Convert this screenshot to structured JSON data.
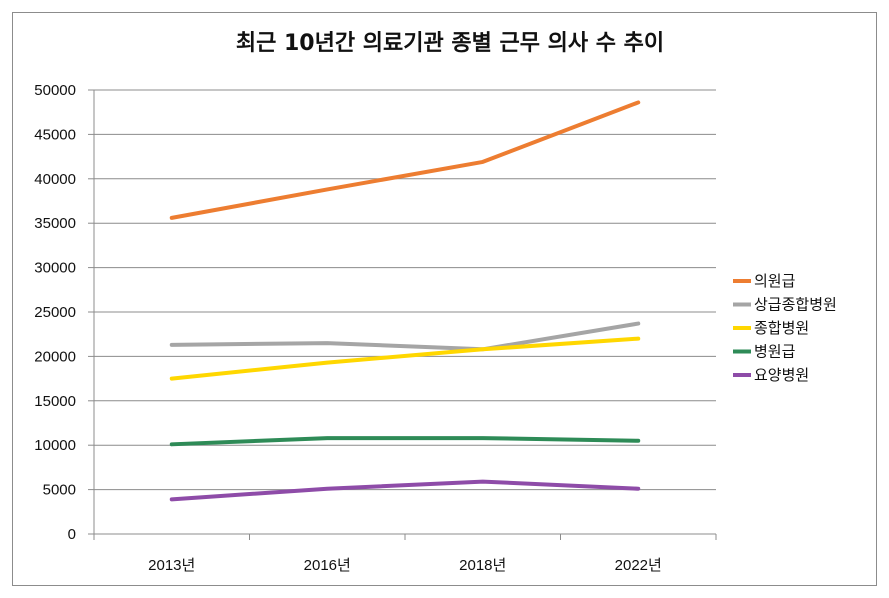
{
  "chart_data": {
    "type": "line",
    "title": "최근 10년간 의료기관 종별 근무 의사 수 추이",
    "categories": [
      "2013년",
      "2016년",
      "2018년",
      "2022년"
    ],
    "ylim": [
      0,
      50000
    ],
    "yticks": [
      0,
      5000,
      10000,
      15000,
      20000,
      25000,
      30000,
      35000,
      40000,
      45000,
      50000
    ],
    "grid": true,
    "legend_position": "right",
    "series": [
      {
        "name": "의원급",
        "color": "#ED7D31",
        "values": [
          35600,
          38800,
          41900,
          48600
        ]
      },
      {
        "name": "상급종합병원",
        "color": "#A5A5A5",
        "values": [
          21300,
          21500,
          20800,
          23700
        ]
      },
      {
        "name": "종합병원",
        "color": "#FFD700",
        "values": [
          17500,
          19300,
          20800,
          22000
        ]
      },
      {
        "name": "병원급",
        "color": "#2E8B57",
        "values": [
          10100,
          10800,
          10800,
          10500
        ]
      },
      {
        "name": "요양병원",
        "color": "#8E4CA8",
        "values": [
          3900,
          5100,
          5900,
          5100
        ]
      }
    ]
  }
}
